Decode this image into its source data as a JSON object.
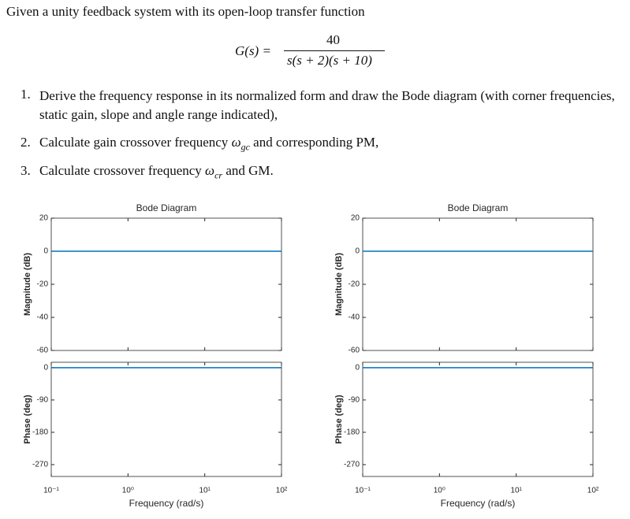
{
  "problem": {
    "intro": "Given a unity feedback system with its open-loop transfer function",
    "equation": {
      "lhs": "G(s) =",
      "numerator": "40",
      "denominator": "s(s + 2)(s + 10)"
    },
    "items": [
      {
        "number": "1.",
        "text": "Derive the frequency response in its normalized form and draw the Bode diagram (with corner frequencies, static gain, slope and angle range indicated),"
      },
      {
        "number": "2.",
        "before": "Calculate gain crossover frequency ",
        "symbol": "ω",
        "subscript": "gc",
        "after": " and corresponding PM,"
      },
      {
        "number": "3.",
        "before": "Calculate crossover frequency ",
        "symbol": "ω",
        "subscript": "cr",
        "after": " and GM."
      }
    ]
  },
  "chart_data": [
    {
      "type": "bode",
      "title": "Bode Diagram",
      "xlabel": "Frequency (rad/s)",
      "xscale": "log",
      "xlim": [
        0.1,
        100
      ],
      "xticks": [
        {
          "value": 0.1,
          "label": "10⁻¹"
        },
        {
          "value": 1,
          "label": "10⁰"
        },
        {
          "value": 10,
          "label": "10¹"
        },
        {
          "value": 100,
          "label": "10²"
        }
      ],
      "magnitude": {
        "ylabel": "Magnitude (dB)",
        "ylim": [
          -60,
          20
        ],
        "yticks": [
          20,
          0,
          -20,
          -40,
          -60
        ],
        "x": [
          0.1,
          100
        ],
        "series": [
          {
            "color": "#0072bd",
            "values": [
              0,
              0
            ]
          }
        ]
      },
      "phase": {
        "ylabel": "Phase (deg)",
        "ylim": [
          -303,
          15
        ],
        "yticks": [
          0,
          -90,
          -180,
          -270
        ],
        "x": [
          0.1,
          100
        ],
        "series": [
          {
            "color": "#0072bd",
            "values": [
              0,
              0
            ]
          }
        ]
      }
    },
    {
      "type": "bode",
      "title": "Bode Diagram",
      "xlabel": "Frequency (rad/s)",
      "xscale": "log",
      "xlim": [
        0.1,
        100
      ],
      "xticks": [
        {
          "value": 0.1,
          "label": "10⁻¹"
        },
        {
          "value": 1,
          "label": "10⁰"
        },
        {
          "value": 10,
          "label": "10¹"
        },
        {
          "value": 100,
          "label": "10²"
        }
      ],
      "magnitude": {
        "ylabel": "Magnitude (dB)",
        "ylim": [
          -60,
          20
        ],
        "yticks": [
          20,
          0,
          -20,
          -40,
          -60
        ],
        "x": [
          0.1,
          100
        ],
        "series": [
          {
            "color": "#0072bd",
            "values": [
              0,
              0
            ]
          }
        ]
      },
      "phase": {
        "ylabel": "Phase (deg)",
        "ylim": [
          -303,
          15
        ],
        "yticks": [
          0,
          -90,
          -180,
          -270
        ],
        "x": [
          0.1,
          100
        ],
        "series": [
          {
            "color": "#0072bd",
            "values": [
              0,
              0
            ]
          }
        ]
      }
    }
  ]
}
